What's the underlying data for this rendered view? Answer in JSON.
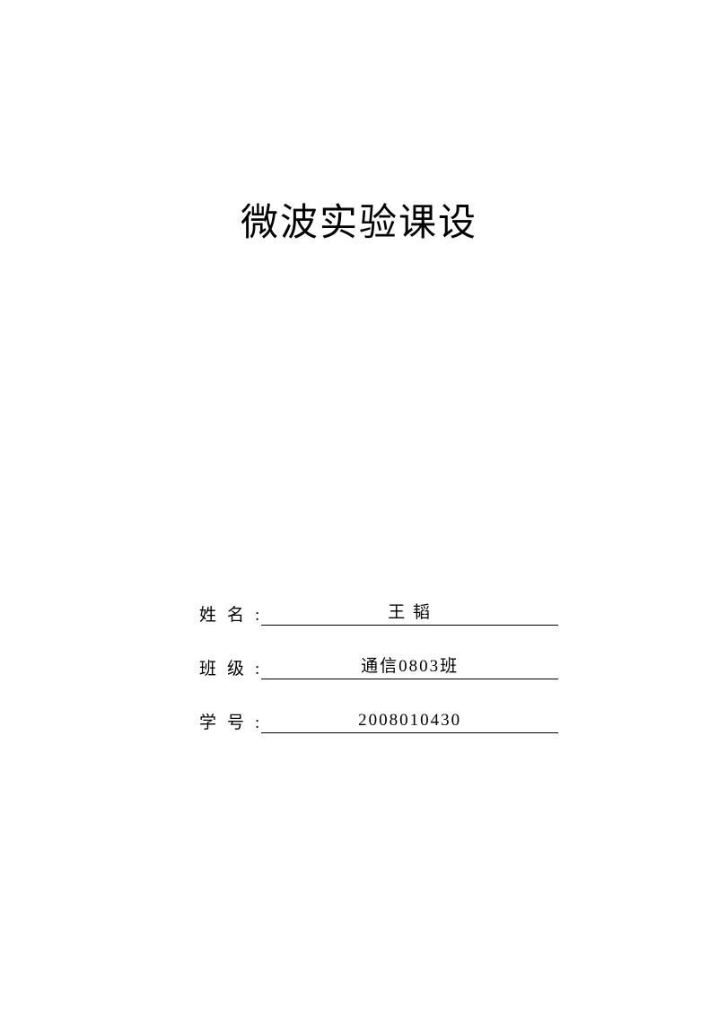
{
  "document": {
    "title": "微波实验课设",
    "fields": {
      "name": {
        "label": "姓",
        "label2": "名",
        "value": "王 韬"
      },
      "class": {
        "label": "班",
        "label2": "级",
        "value": "通信0803班"
      },
      "studentId": {
        "label": "学",
        "label2": "号",
        "value": "2008010430"
      }
    },
    "colors": {
      "background": "#ffffff",
      "text": "#000000",
      "underline": "#000000"
    },
    "typography": {
      "title_fontsize": 42,
      "label_fontsize": 19,
      "value_fontsize": 19,
      "font_family": "SimSun"
    }
  }
}
